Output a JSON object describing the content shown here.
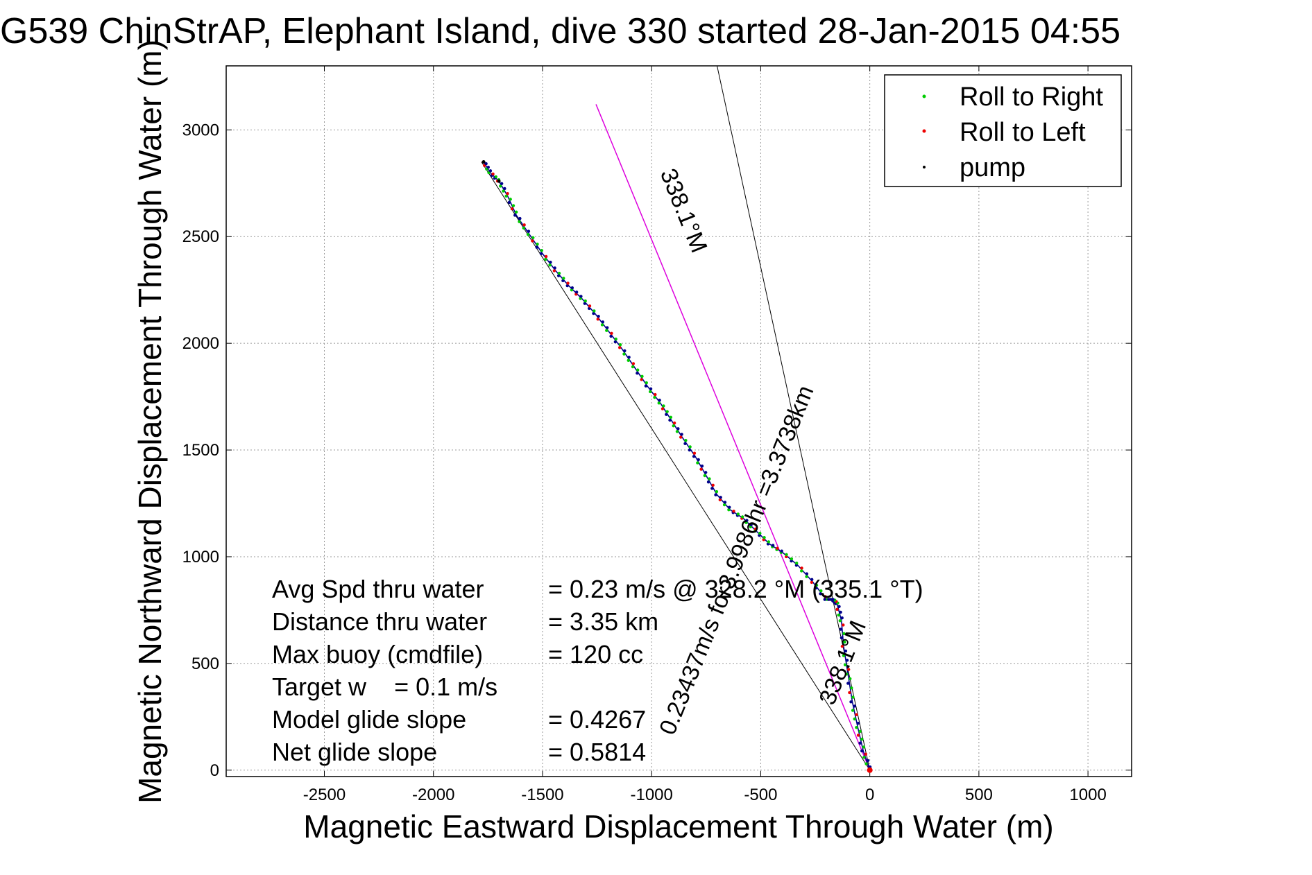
{
  "chart_data": {
    "type": "scatter",
    "title": "G539 ChinStrAP, Elephant Island, dive 330 started 28-Jan-2015 04:55",
    "xlabel": "Magnetic Eastward Displacement Through Water (m)",
    "ylabel": "Magnetic Northward Displacement Through Water (m)",
    "xlim": [
      -2950,
      1200
    ],
    "ylim": [
      -30,
      3300
    ],
    "x_ticks": [
      -2500,
      -2000,
      -1500,
      -1000,
      -500,
      0,
      500,
      1000
    ],
    "y_ticks": [
      0,
      500,
      1000,
      1500,
      2000,
      2500,
      3000
    ],
    "grid": true,
    "legend_position": "top-right",
    "legend": [
      {
        "label": "Roll to Right",
        "color": "#00cc00"
      },
      {
        "label": "Roll to Left",
        "color": "#ee0000"
      },
      {
        "label": "pump",
        "color": "#000000"
      }
    ],
    "colors": {
      "track": "#00008b",
      "roll_right": "#00cc00",
      "roll_left": "#ee0000",
      "pump": "#000000",
      "current_line": "#dd00dd",
      "reference": "#000000"
    },
    "track": {
      "x": [
        0,
        -30,
        -55,
        -80,
        -100,
        -120,
        -130,
        -150,
        -170,
        -200,
        -260,
        -330,
        -400,
        -460,
        -520,
        -580,
        -640,
        -700,
        -750,
        -800,
        -860,
        -910,
        -960,
        -1020,
        -1080,
        -1140,
        -1200,
        -1260,
        -1320,
        -1380,
        -1440,
        -1500,
        -1560,
        -1620,
        -1660,
        -1700,
        -1740,
        -1770
      ],
      "y": [
        0,
        90,
        200,
        320,
        450,
        580,
        700,
        780,
        800,
        800,
        880,
        960,
        1020,
        1060,
        1120,
        1180,
        1220,
        1290,
        1380,
        1470,
        1560,
        1640,
        1720,
        1800,
        1890,
        1980,
        2060,
        2140,
        2210,
        2270,
        2340,
        2420,
        2510,
        2600,
        2690,
        2760,
        2800,
        2850
      ]
    },
    "current_line": {
      "x": [
        0,
        -1255
      ],
      "y": [
        0,
        3120
      ],
      "label": "0.23437m/s for3.9986hr =3.3738km  338.1°M"
    },
    "reference_lines": [
      {
        "x": [
          0,
          -1780
        ],
        "y": [
          0,
          2850
        ]
      },
      {
        "x": [
          0,
          -700
        ],
        "y": [
          0,
          3300
        ]
      }
    ],
    "annotations": [
      {
        "text": "338.1°M",
        "x": -1000,
        "y": 2700
      },
      {
        "text": "0.23437m/s for3.9986hr =3.3738km",
        "x": -500,
        "y": 1300
      },
      {
        "text": "338.1°M",
        "x": -100,
        "y": 480
      }
    ],
    "stats": [
      {
        "label": "Avg Spd thru water",
        "value": "=  0.23 m/s @ 328.2 °M (335.1 °T)"
      },
      {
        "label": "Distance thru water",
        "value": "=  3.35 km"
      },
      {
        "label": "Max buoy (cmdfile)",
        "value": "= 120 cc"
      },
      {
        "label": "Target w    = 0.1 m/s",
        "value": ""
      },
      {
        "label": "Model glide slope",
        "value": "= 0.4267"
      },
      {
        "label": "Net glide slope",
        "value": "= 0.5814"
      }
    ]
  }
}
